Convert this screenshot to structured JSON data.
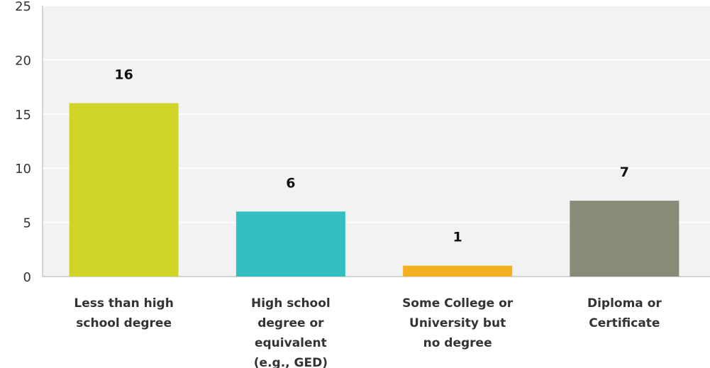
{
  "chart_data": {
    "type": "bar",
    "categories": [
      [
        "Less than high",
        "school degree"
      ],
      [
        "High school",
        "degree or",
        "equivalent",
        "(e.g., GED)"
      ],
      [
        "Some College or",
        "University but",
        "no degree"
      ],
      [
        "Diploma or",
        "Certificate"
      ]
    ],
    "values": [
      16,
      6,
      1,
      7
    ],
    "bar_colors": [
      "#cfd426",
      "#34bec0",
      "#f5b021",
      "#8a8a78"
    ],
    "ylim": [
      0,
      25
    ],
    "yticks": [
      0,
      5,
      10,
      15,
      20,
      25
    ],
    "grid": true,
    "title": "",
    "xlabel": "",
    "ylabel": ""
  },
  "colors": {
    "plot_background": "#f2f2f2",
    "gridline": "#ffffff",
    "axis_line": "#c8c8c8"
  }
}
